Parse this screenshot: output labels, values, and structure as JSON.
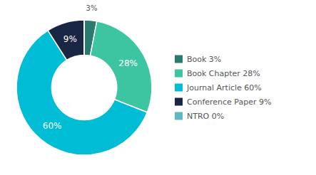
{
  "chart_data": {
    "type": "donut",
    "categories": [
      "Book 3%",
      "Book Chapter 28%",
      "Journal Article 60%",
      "Conference Paper 9%",
      "NTRO 0%"
    ],
    "values": [
      3,
      28,
      60,
      9,
      0.001
    ],
    "value_labels": [
      "3%",
      "28%",
      "60%",
      "9%",
      null
    ],
    "colors": [
      "#2b7a6e",
      "#3dc4a0",
      "#00bcd4",
      "#1a2744",
      "#5cb8c4"
    ],
    "data_labels": true,
    "legend": "right"
  }
}
